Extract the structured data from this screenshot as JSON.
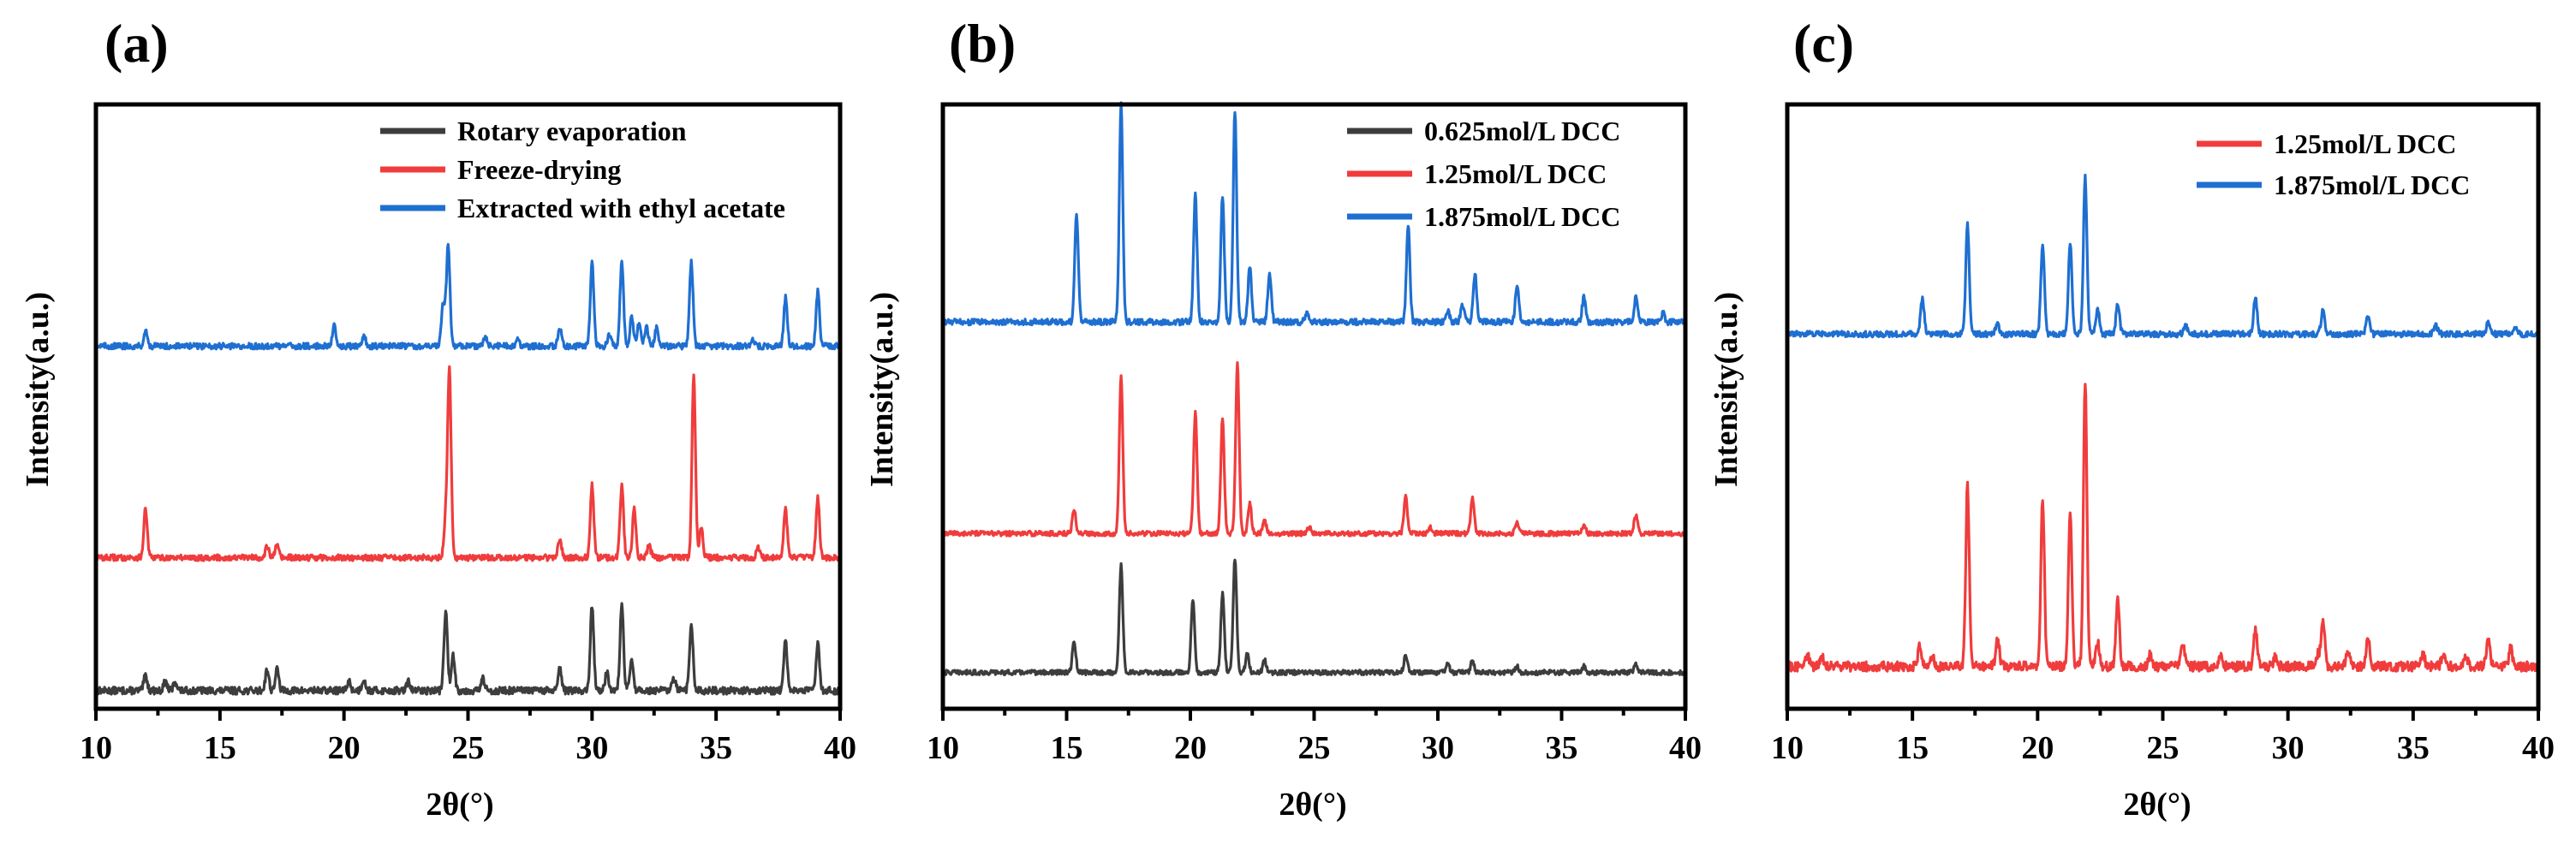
{
  "colors": {
    "gray": "#3d3d3d",
    "red": "#f03c3c",
    "blue": "#1f6fd1"
  },
  "chart_data": [
    {
      "type": "line",
      "panel_label": "(a)",
      "xlabel": "2θ(°)",
      "ylabel": "Intensity(a.u.)",
      "xlim": [
        10,
        40
      ],
      "ylim": [
        0,
        100
      ],
      "xticks": [
        "10",
        "15",
        "20",
        "25",
        "30",
        "35",
        "40"
      ],
      "legend_position": "top-right",
      "series": [
        {
          "name": "Rotary evaporation",
          "color": "#3d3d3d",
          "baseline": 3,
          "noise": 0.6,
          "peaks": [
            [
              12.0,
              2.5
            ],
            [
              12.8,
              1.5
            ],
            [
              13.2,
              1.5
            ],
            [
              16.9,
              3.5
            ],
            [
              17.3,
              3.5
            ],
            [
              20.2,
              1.5
            ],
            [
              20.8,
              2
            ],
            [
              22.6,
              1.5
            ],
            [
              24.1,
              13
            ],
            [
              24.4,
              6
            ],
            [
              25.6,
              2
            ],
            [
              28.7,
              3.5
            ],
            [
              30.0,
              14
            ],
            [
              30.6,
              3
            ],
            [
              31.2,
              14
            ],
            [
              31.6,
              5
            ],
            [
              33.3,
              2
            ],
            [
              34.0,
              11
            ],
            [
              37.8,
              8
            ],
            [
              39.1,
              8
            ]
          ]
        },
        {
          "name": "Freeze-drying",
          "color": "#f03c3c",
          "baseline": 25,
          "noise": 0.5,
          "peaks": [
            [
              12.0,
              8
            ],
            [
              16.9,
              2
            ],
            [
              17.3,
              2
            ],
            [
              24.1,
              6
            ],
            [
              24.25,
              31
            ],
            [
              28.7,
              3
            ],
            [
              30.0,
              12
            ],
            [
              31.2,
              12
            ],
            [
              31.7,
              8
            ],
            [
              32.3,
              2
            ],
            [
              34.1,
              30
            ],
            [
              34.4,
              5
            ],
            [
              36.7,
              1.5
            ],
            [
              37.8,
              8
            ],
            [
              39.1,
              10
            ]
          ]
        },
        {
          "name": "Extracted with ethyl acetate",
          "color": "#1f6fd1",
          "baseline": 60,
          "noise": 0.5,
          "peaks": [
            [
              12.0,
              2.5
            ],
            [
              19.6,
              3.5
            ],
            [
              20.8,
              2
            ],
            [
              24.2,
              17
            ],
            [
              24.0,
              7
            ],
            [
              25.7,
              1.5
            ],
            [
              27.0,
              1
            ],
            [
              28.7,
              3
            ],
            [
              30.0,
              14
            ],
            [
              30.7,
              2
            ],
            [
              31.2,
              14
            ],
            [
              31.6,
              5
            ],
            [
              31.9,
              4
            ],
            [
              32.2,
              3
            ],
            [
              32.6,
              3
            ],
            [
              34.0,
              14
            ],
            [
              36.5,
              1
            ],
            [
              37.8,
              8
            ],
            [
              39.1,
              9
            ]
          ]
        }
      ]
    },
    {
      "type": "line",
      "panel_label": "(b)",
      "xlabel": "2θ(°)",
      "ylabel": "Intensity(a.u.)",
      "xlim": [
        10,
        40
      ],
      "ylim": [
        0,
        100
      ],
      "xticks": [
        "10",
        "15",
        "20",
        "25",
        "30",
        "35",
        "40"
      ],
      "legend_position": "top-right",
      "series": [
        {
          "name": "0.625mol/L DCC",
          "color": "#3d3d3d",
          "baseline": 6,
          "noise": 0.4,
          "peaks": [
            [
              15.3,
              5
            ],
            [
              17.2,
              18
            ],
            [
              20.1,
              12
            ],
            [
              21.3,
              13
            ],
            [
              21.8,
              19
            ],
            [
              22.3,
              3
            ],
            [
              23.0,
              2
            ],
            [
              28.7,
              3
            ],
            [
              30.4,
              1.5
            ],
            [
              31.4,
              2
            ],
            [
              33.2,
              1
            ],
            [
              35.9,
              1
            ],
            [
              38.0,
              1.5
            ]
          ]
        },
        {
          "name": "1.25mol/L DCC",
          "color": "#f03c3c",
          "baseline": 29,
          "noise": 0.4,
          "peaks": [
            [
              15.3,
              4
            ],
            [
              17.2,
              26
            ],
            [
              20.2,
              20
            ],
            [
              21.3,
              19
            ],
            [
              21.9,
              28
            ],
            [
              22.4,
              5
            ],
            [
              23.0,
              2
            ],
            [
              24.8,
              1
            ],
            [
              28.7,
              6
            ],
            [
              29.7,
              1
            ],
            [
              31.4,
              6
            ],
            [
              33.2,
              2
            ],
            [
              35.9,
              1.5
            ],
            [
              38.0,
              3
            ]
          ]
        },
        {
          "name": "1.875mol/L DCC",
          "color": "#1f6fd1",
          "baseline": 64,
          "noise": 0.5,
          "peaks": [
            [
              15.4,
              18
            ],
            [
              17.2,
              36
            ],
            [
              20.2,
              21
            ],
            [
              21.3,
              21
            ],
            [
              21.8,
              35
            ],
            [
              22.4,
              9
            ],
            [
              23.2,
              8
            ],
            [
              24.7,
              1.5
            ],
            [
              28.8,
              16
            ],
            [
              30.4,
              2
            ],
            [
              31.0,
              3
            ],
            [
              31.5,
              8
            ],
            [
              33.2,
              6
            ],
            [
              35.9,
              4
            ],
            [
              38.0,
              4
            ],
            [
              39.1,
              1.5
            ]
          ]
        }
      ]
    },
    {
      "type": "line",
      "panel_label": "(c)",
      "xlabel": "2θ(°)",
      "ylabel": "Intensity(a.u.)",
      "xlim": [
        10,
        40
      ],
      "ylim": [
        0,
        100
      ],
      "xticks": [
        "10",
        "15",
        "20",
        "25",
        "30",
        "35",
        "40"
      ],
      "legend_position": "top-right",
      "series": [
        {
          "name": "1.25mol/L DCC",
          "color": "#f03c3c",
          "baseline": 7,
          "noise": 0.8,
          "peaks": [
            [
              10.8,
              2
            ],
            [
              11.4,
              1.5
            ],
            [
              15.3,
              3.5
            ],
            [
              15.8,
              2
            ],
            [
              17.2,
              30
            ],
            [
              18.4,
              5
            ],
            [
              20.2,
              28
            ],
            [
              21.3,
              25
            ],
            [
              21.9,
              47
            ],
            [
              22.4,
              4
            ],
            [
              23.2,
              11
            ],
            [
              24.5,
              2
            ],
            [
              25.8,
              4
            ],
            [
              27.3,
              1.5
            ],
            [
              28.7,
              6
            ],
            [
              29.5,
              1.5
            ],
            [
              31.2,
              2
            ],
            [
              31.4,
              8
            ],
            [
              32.4,
              3
            ],
            [
              33.2,
              5
            ],
            [
              35.4,
              2
            ],
            [
              36.2,
              2
            ],
            [
              37.1,
              2
            ],
            [
              38.0,
              5
            ],
            [
              38.9,
              3
            ]
          ]
        },
        {
          "name": "1.875mol/L DCC",
          "color": "#1f6fd1",
          "baseline": 62,
          "noise": 0.5,
          "peaks": [
            [
              15.4,
              6
            ],
            [
              17.2,
              18
            ],
            [
              18.4,
              1.5
            ],
            [
              20.2,
              15
            ],
            [
              21.3,
              15
            ],
            [
              21.9,
              26
            ],
            [
              22.4,
              4
            ],
            [
              23.2,
              5
            ],
            [
              25.9,
              1.5
            ],
            [
              28.7,
              6
            ],
            [
              31.4,
              4
            ],
            [
              33.2,
              3
            ],
            [
              35.9,
              1.5
            ],
            [
              38.0,
              2
            ],
            [
              39.1,
              1
            ]
          ]
        }
      ]
    }
  ]
}
